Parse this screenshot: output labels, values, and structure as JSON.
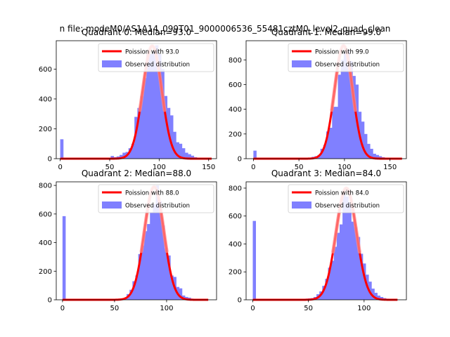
{
  "suptitle": "n file: modeM0/AS1A14_099T01_9000006536_55481cztM0_level2_quad_clean",
  "colors": {
    "hist": "#8080ff",
    "fit": "#ff0000",
    "fit_peak": "#ff8a8a"
  },
  "chart_data": [
    {
      "type": "bar",
      "title": "Quadrant 0: Median=93.0",
      "xlim": [
        -4,
        158
      ],
      "ylim": [
        0,
        790
      ],
      "xticks": [
        0,
        50,
        100,
        150
      ],
      "yticks": [
        0,
        200,
        400,
        600
      ],
      "legend": {
        "placement": "top-right",
        "fit_label": "Poission with 93.0",
        "hist_label": "Observed distribution"
      },
      "bin_width": 3.02,
      "mu": 93,
      "peak": 755,
      "bins": [
        [
          0,
          130
        ],
        [
          3,
          0
        ],
        [
          6,
          0
        ],
        [
          9,
          0
        ],
        [
          12,
          0
        ],
        [
          15,
          0
        ],
        [
          18,
          0
        ],
        [
          21,
          0
        ],
        [
          24,
          0
        ],
        [
          27,
          0
        ],
        [
          30,
          0
        ],
        [
          33,
          0
        ],
        [
          36,
          0
        ],
        [
          39,
          0
        ],
        [
          42,
          0
        ],
        [
          45,
          2
        ],
        [
          48,
          3
        ],
        [
          51,
          18
        ],
        [
          54,
          10
        ],
        [
          57,
          15
        ],
        [
          60,
          25
        ],
        [
          63,
          40
        ],
        [
          66,
          45
        ],
        [
          69,
          70
        ],
        [
          72,
          100
        ],
        [
          75,
          280
        ],
        [
          78,
          340
        ],
        [
          81,
          420
        ],
        [
          84,
          540
        ],
        [
          87,
          700
        ],
        [
          90,
          700
        ],
        [
          93,
          720
        ],
        [
          96,
          760
        ],
        [
          99,
          700
        ],
        [
          102,
          600
        ],
        [
          105,
          420
        ],
        [
          108,
          340
        ],
        [
          111,
          290
        ],
        [
          114,
          180
        ],
        [
          117,
          110
        ],
        [
          120,
          100
        ],
        [
          123,
          70
        ],
        [
          126,
          40
        ],
        [
          129,
          30
        ],
        [
          132,
          20
        ],
        [
          135,
          10
        ],
        [
          138,
          5
        ],
        [
          141,
          3
        ],
        [
          144,
          2
        ],
        [
          147,
          1
        ],
        [
          150,
          1
        ]
      ]
    },
    {
      "type": "bar",
      "title": "Quadrant 1: Median=99.0",
      "xlim": [
        -8,
        168
      ],
      "ylim": [
        0,
        955
      ],
      "xticks": [
        0,
        50,
        100,
        150
      ],
      "yticks": [
        0,
        200,
        400,
        600,
        800
      ],
      "legend": {
        "placement": "top-right",
        "fit_label": "Poission with 99.0",
        "hist_label": "Observed distribution"
      },
      "bin_width": 3.2,
      "mu": 99,
      "peak": 915,
      "bins": [
        [
          0,
          65
        ],
        [
          3.2,
          0
        ],
        [
          6.4,
          0
        ],
        [
          9.6,
          0
        ],
        [
          12.8,
          0
        ],
        [
          16,
          0
        ],
        [
          19.2,
          0
        ],
        [
          22.4,
          0
        ],
        [
          25.6,
          0
        ],
        [
          28.8,
          0
        ],
        [
          32,
          0
        ],
        [
          35.2,
          0
        ],
        [
          38.4,
          0
        ],
        [
          41.6,
          0
        ],
        [
          44.8,
          0
        ],
        [
          48,
          0
        ],
        [
          51.2,
          0
        ],
        [
          54.4,
          3
        ],
        [
          57.6,
          5
        ],
        [
          60.8,
          8
        ],
        [
          64,
          15
        ],
        [
          67.2,
          20
        ],
        [
          70.4,
          30
        ],
        [
          73.6,
          80
        ],
        [
          76.8,
          110
        ],
        [
          80,
          220
        ],
        [
          83.2,
          250
        ],
        [
          86.4,
          420
        ],
        [
          89.6,
          420
        ],
        [
          92.8,
          680
        ],
        [
          96,
          800
        ],
        [
          99.2,
          860
        ],
        [
          102.4,
          880
        ],
        [
          105.6,
          790
        ],
        [
          108.8,
          670
        ],
        [
          112,
          600
        ],
        [
          115.2,
          380
        ],
        [
          118.4,
          300
        ],
        [
          121.6,
          200
        ],
        [
          124.8,
          120
        ],
        [
          128,
          80
        ],
        [
          131.2,
          40
        ],
        [
          134.4,
          30
        ],
        [
          137.6,
          20
        ],
        [
          140.8,
          12
        ],
        [
          144,
          8
        ],
        [
          147.2,
          5
        ],
        [
          150.4,
          3
        ],
        [
          153.6,
          2
        ],
        [
          156.8,
          1
        ],
        [
          160,
          1
        ]
      ]
    },
    {
      "type": "bar",
      "title": "Quadrant 2: Median=88.0",
      "xlim": [
        -6,
        148
      ],
      "ylim": [
        0,
        825
      ],
      "xticks": [
        0,
        50,
        100
      ],
      "yticks": [
        0,
        200,
        400,
        600,
        800
      ],
      "legend": {
        "placement": "top-right",
        "fit_label": "Poission with 88.0",
        "hist_label": "Observed distribution"
      },
      "bin_width": 2.8,
      "mu": 88,
      "peak": 790,
      "bins": [
        [
          0,
          585
        ],
        [
          2.8,
          0
        ],
        [
          5.6,
          0
        ],
        [
          8.4,
          0
        ],
        [
          11.2,
          0
        ],
        [
          14,
          0
        ],
        [
          16.8,
          0
        ],
        [
          19.6,
          0
        ],
        [
          22.4,
          0
        ],
        [
          25.2,
          0
        ],
        [
          28,
          0
        ],
        [
          30.8,
          0
        ],
        [
          33.6,
          0
        ],
        [
          36.4,
          0
        ],
        [
          39.2,
          0
        ],
        [
          42,
          0
        ],
        [
          44.8,
          2
        ],
        [
          47.6,
          5
        ],
        [
          50.4,
          5
        ],
        [
          53.2,
          8
        ],
        [
          56,
          10
        ],
        [
          58.8,
          15
        ],
        [
          61.6,
          40
        ],
        [
          64.4,
          70
        ],
        [
          67.2,
          130
        ],
        [
          70,
          170
        ],
        [
          72.8,
          320
        ],
        [
          75.6,
          380
        ],
        [
          78.4,
          480
        ],
        [
          81.2,
          530
        ],
        [
          84,
          610
        ],
        [
          86.8,
          670
        ],
        [
          89.6,
          800
        ],
        [
          92.4,
          690
        ],
        [
          95.2,
          520
        ],
        [
          98,
          360
        ],
        [
          100.8,
          310
        ],
        [
          103.6,
          170
        ],
        [
          106.4,
          160
        ],
        [
          109.2,
          90
        ],
        [
          112,
          80
        ],
        [
          114.8,
          30
        ],
        [
          117.6,
          20
        ],
        [
          120.4,
          15
        ],
        [
          123.2,
          8
        ],
        [
          126,
          5
        ],
        [
          128.8,
          3
        ],
        [
          131.6,
          2
        ],
        [
          134.4,
          1
        ],
        [
          137.2,
          1
        ]
      ]
    },
    {
      "type": "bar",
      "title": "Quadrant 3: Median=84.0",
      "xlim": [
        -6,
        138
      ],
      "ylim": [
        0,
        845
      ],
      "xticks": [
        0,
        50,
        100
      ],
      "yticks": [
        0,
        200,
        400,
        600,
        800
      ],
      "legend": {
        "placement": "top-right",
        "fit_label": "Poission with 84.0",
        "hist_label": "Observed distribution"
      },
      "bin_width": 2.6,
      "mu": 84,
      "peak": 800,
      "bins": [
        [
          0,
          565
        ],
        [
          2.6,
          0
        ],
        [
          5.2,
          0
        ],
        [
          7.8,
          0
        ],
        [
          10.4,
          0
        ],
        [
          13,
          0
        ],
        [
          15.6,
          0
        ],
        [
          18.2,
          0
        ],
        [
          20.8,
          0
        ],
        [
          23.4,
          0
        ],
        [
          26,
          0
        ],
        [
          28.6,
          0
        ],
        [
          31.2,
          0
        ],
        [
          33.8,
          0
        ],
        [
          36.4,
          0
        ],
        [
          39,
          0
        ],
        [
          41.6,
          2
        ],
        [
          44.2,
          5
        ],
        [
          46.8,
          8
        ],
        [
          49.4,
          10
        ],
        [
          52,
          12
        ],
        [
          54.6,
          20
        ],
        [
          57.2,
          40
        ],
        [
          59.8,
          60
        ],
        [
          62.4,
          100
        ],
        [
          65,
          150
        ],
        [
          67.6,
          230
        ],
        [
          70.2,
          280
        ],
        [
          72.8,
          380
        ],
        [
          75.4,
          480
        ],
        [
          78,
          540
        ],
        [
          80.6,
          760
        ],
        [
          83.2,
          740
        ],
        [
          85.8,
          700
        ],
        [
          88.4,
          560
        ],
        [
          91,
          520
        ],
        [
          93.6,
          450
        ],
        [
          96.2,
          330
        ],
        [
          98.8,
          260
        ],
        [
          101.4,
          180
        ],
        [
          104,
          130
        ],
        [
          106.6,
          80
        ],
        [
          109.2,
          50
        ],
        [
          111.8,
          30
        ],
        [
          114.4,
          20
        ],
        [
          117,
          12
        ],
        [
          119.6,
          8
        ],
        [
          122.2,
          4
        ],
        [
          124.8,
          2
        ],
        [
          127.4,
          1
        ]
      ]
    }
  ]
}
